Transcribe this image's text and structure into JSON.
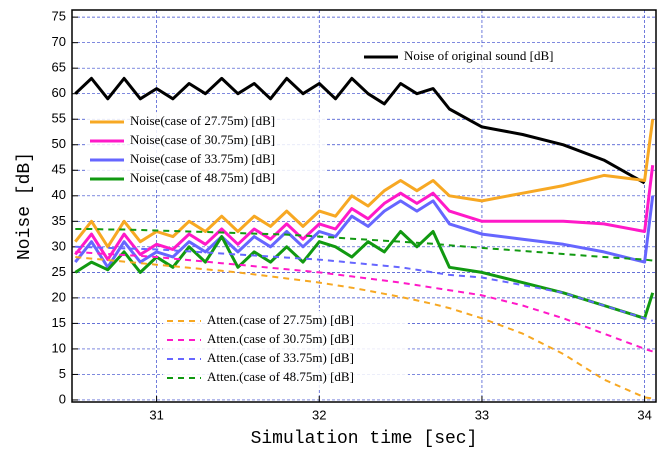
{
  "chart_data": {
    "type": "line",
    "xlabel": "Simulation time [sec]",
    "ylabel": "Noise [dB]",
    "x": [
      30.5,
      30.6,
      30.7,
      30.8,
      30.9,
      31.0,
      31.1,
      31.2,
      31.3,
      31.4,
      31.5,
      31.6,
      31.7,
      31.8,
      31.9,
      32.0,
      32.1,
      32.2,
      32.3,
      32.4,
      32.5,
      32.6,
      32.7,
      32.8,
      33.0,
      33.25,
      33.5,
      33.75,
      34.0,
      34.05
    ],
    "xlim": [
      30.48,
      34.07
    ],
    "xticks": [
      31,
      32,
      33,
      34
    ],
    "ylim": [
      -0.4,
      76.4
    ],
    "yticks": [
      0,
      5,
      10,
      15,
      20,
      25,
      30,
      35,
      40,
      45,
      50,
      55,
      60,
      65,
      70,
      75
    ],
    "grid": true,
    "series": [
      {
        "name": "Noise of original sound [dB]",
        "color": "#000000",
        "dashed": false,
        "values": [
          60,
          63,
          59,
          63,
          59,
          61,
          59,
          62,
          60,
          63,
          60,
          62,
          59,
          63,
          60,
          62,
          59,
          63,
          60,
          58,
          62,
          60,
          61,
          57,
          53.5,
          52,
          50,
          47,
          42.5,
          null
        ]
      },
      {
        "name": "Noise(case of 27.75m) [dB]",
        "color": "#f7a823",
        "dashed": false,
        "values": [
          31,
          35,
          30,
          35,
          31,
          33,
          32,
          35,
          33,
          36,
          33,
          36,
          34,
          37,
          34,
          37,
          36,
          40,
          38,
          41,
          43,
          41,
          43,
          40,
          39,
          40.5,
          42,
          44,
          43,
          55
        ]
      },
      {
        "name": "Noise(case of 30.75m) [dB]",
        "color": "#ff19c8",
        "dashed": false,
        "values": [
          28.5,
          32.5,
          27.5,
          32.5,
          28.5,
          30.5,
          29.5,
          32.5,
          30.5,
          33.5,
          30.5,
          33.5,
          31.5,
          34.5,
          31.5,
          34.5,
          33.5,
          37.5,
          35.5,
          38.5,
          40.5,
          38.5,
          40.5,
          37,
          35,
          35,
          35,
          34.5,
          33,
          46
        ]
      },
      {
        "name": "Noise(case of 33.75m) [dB]",
        "color": "#6666ff",
        "dashed": false,
        "values": [
          27,
          31,
          26,
          31,
          27,
          29,
          28,
          31,
          29,
          32,
          29,
          32,
          30,
          33,
          30,
          33,
          32,
          36,
          34,
          37,
          39,
          37,
          39,
          34.5,
          32.5,
          31.5,
          30.5,
          29,
          27,
          40
        ]
      },
      {
        "name": "Noise(case of 48.75m) [dB]",
        "color": "#119911",
        "dashed": false,
        "values": [
          25,
          27,
          25.5,
          29,
          25,
          28,
          26,
          30,
          27,
          32,
          26,
          29,
          27,
          30,
          27,
          31,
          30,
          28,
          31,
          29,
          33,
          30,
          33,
          26,
          25,
          23,
          21,
          18.5,
          16,
          21
        ]
      },
      {
        "name": "Atten.(case of 27.75m) [dB]",
        "color": "#f7a823",
        "dashed": true,
        "values": [
          28,
          27.7,
          27.4,
          27.1,
          26.8,
          26.5,
          26.2,
          25.9,
          25.6,
          25.3,
          25,
          24.6,
          24.2,
          23.8,
          23.4,
          23,
          22.5,
          22,
          21.4,
          20.8,
          20.2,
          19.5,
          18.8,
          18,
          16,
          13,
          9,
          4,
          0.5,
          0.3
        ]
      },
      {
        "name": "Atten.(case of 30.75m) [dB]",
        "color": "#ff19c8",
        "dashed": true,
        "values": [
          29,
          28.8,
          28.6,
          28.4,
          28.2,
          28,
          27.7,
          27.4,
          27.1,
          26.8,
          26.5,
          26.2,
          25.9,
          25.6,
          25.3,
          25,
          24.6,
          24.2,
          23.8,
          23.4,
          23,
          22.5,
          22,
          21.5,
          20.5,
          18.5,
          16,
          13,
          10,
          9.5
        ]
      },
      {
        "name": "Atten.(case of 33.75m) [dB]",
        "color": "#6666ff",
        "dashed": true,
        "values": [
          30,
          29.9,
          29.8,
          29.7,
          29.6,
          29.5,
          29.3,
          29.1,
          28.9,
          28.7,
          28.5,
          28.3,
          28.1,
          27.9,
          27.7,
          27.5,
          27.2,
          26.9,
          26.6,
          26.3,
          26,
          25.5,
          25,
          24.5,
          24,
          22.5,
          21,
          18.5,
          16,
          15.5
        ]
      },
      {
        "name": "Atten.(case of 48.75m) [dB]",
        "color": "#119911",
        "dashed": true,
        "values": [
          33.5,
          33.5,
          33.4,
          33.4,
          33.3,
          33.2,
          33.1,
          33,
          32.9,
          32.8,
          32.7,
          32.6,
          32.5,
          32.4,
          32.2,
          32,
          31.8,
          31.6,
          31.4,
          31.2,
          31,
          30.8,
          30.6,
          30.3,
          29.8,
          29.2,
          28.6,
          28,
          27.5,
          27.3
        ]
      }
    ]
  }
}
